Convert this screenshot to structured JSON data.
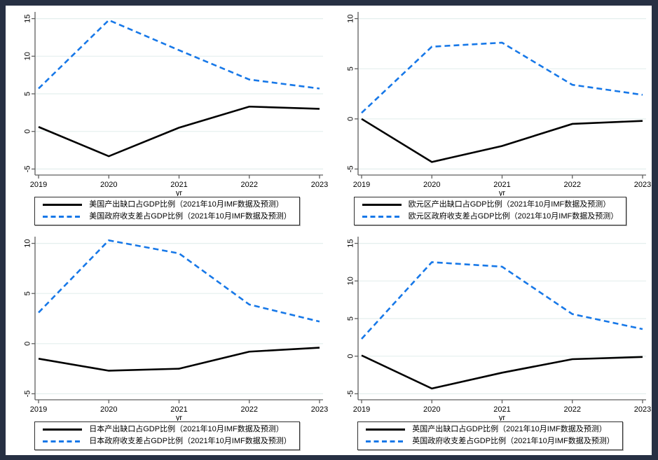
{
  "figure": {
    "frame_color": "#273043",
    "background": "#ffffff"
  },
  "colors": {
    "output_gap_line": "#000000",
    "balance_line": "#1778e8",
    "gridline": "#e4efee",
    "axis_line": "#5f5f5f",
    "tick_label": "#000000",
    "legend_border": "#2e2e2e"
  },
  "chart_data": [
    {
      "type": "line",
      "region": "美国",
      "x": [
        2019,
        2020,
        2021,
        2022,
        2023
      ],
      "xlabel": "yr",
      "ylim": [
        -5,
        15
      ],
      "yticks": [
        -5,
        0,
        5,
        10,
        15
      ],
      "grid": true,
      "legend_position": "bottom",
      "series": [
        {
          "name": "美国产出缺口占GDP比例（2021年10月IMF数据及预测）",
          "line_style": "solid",
          "color": "#000000",
          "values": [
            0.6,
            -3.3,
            0.5,
            3.3,
            3.0
          ]
        },
        {
          "name": "美国政府收支差占GDP比例（2021年10月IMF数据及预测）",
          "line_style": "dashed",
          "color": "#1778e8",
          "values": [
            5.7,
            14.8,
            10.8,
            6.9,
            5.7
          ]
        }
      ]
    },
    {
      "type": "line",
      "region": "欧元区",
      "x": [
        2019,
        2020,
        2021,
        2022,
        2023
      ],
      "xlabel": "yr",
      "ylim": [
        -5,
        10
      ],
      "yticks": [
        -5,
        0,
        5,
        10
      ],
      "grid": true,
      "legend_position": "bottom",
      "series": [
        {
          "name": "欧元区产出缺口占GDP比例（2021年10月IMF数据及预测）",
          "line_style": "solid",
          "color": "#000000",
          "values": [
            0.0,
            -4.3,
            -2.7,
            -0.5,
            -0.2
          ]
        },
        {
          "name": "欧元区政府收支差占GDP比例（2021年10月IMF数据及预测）",
          "line_style": "dashed",
          "color": "#1778e8",
          "values": [
            0.6,
            7.2,
            7.6,
            3.4,
            2.4
          ]
        }
      ]
    },
    {
      "type": "line",
      "region": "日本",
      "x": [
        2019,
        2020,
        2021,
        2022,
        2023
      ],
      "xlabel": "yr",
      "ylim": [
        -5,
        10
      ],
      "yticks": [
        -5,
        0,
        5,
        10
      ],
      "grid": true,
      "legend_position": "bottom",
      "series": [
        {
          "name": "日本产出缺口占GDP比例（2021年10月IMF数据及预测）",
          "line_style": "solid",
          "color": "#000000",
          "values": [
            -1.5,
            -2.7,
            -2.5,
            -0.8,
            -0.4
          ]
        },
        {
          "name": "日本政府收支差占GDP比例（2021年10月IMF数据及预测）",
          "line_style": "dashed",
          "color": "#1778e8",
          "values": [
            3.1,
            10.3,
            9.0,
            3.9,
            2.2
          ]
        }
      ]
    },
    {
      "type": "line",
      "region": "英国",
      "x": [
        2019,
        2020,
        2021,
        2022,
        2023
      ],
      "xlabel": "yr",
      "ylim": [
        -5,
        15
      ],
      "yticks": [
        -5,
        0,
        5,
        10,
        15
      ],
      "grid": true,
      "legend_position": "bottom",
      "series": [
        {
          "name": "英国产出缺口占GDP比例（2021年10月IMF数据及预测）",
          "line_style": "solid",
          "color": "#000000",
          "values": [
            0.1,
            -4.3,
            -2.2,
            -0.4,
            -0.1
          ]
        },
        {
          "name": "英国政府收支差占GDP比例（2021年10月IMF数据及预测）",
          "line_style": "dashed",
          "color": "#1778e8",
          "values": [
            2.3,
            12.5,
            11.9,
            5.6,
            3.6
          ]
        }
      ]
    }
  ]
}
